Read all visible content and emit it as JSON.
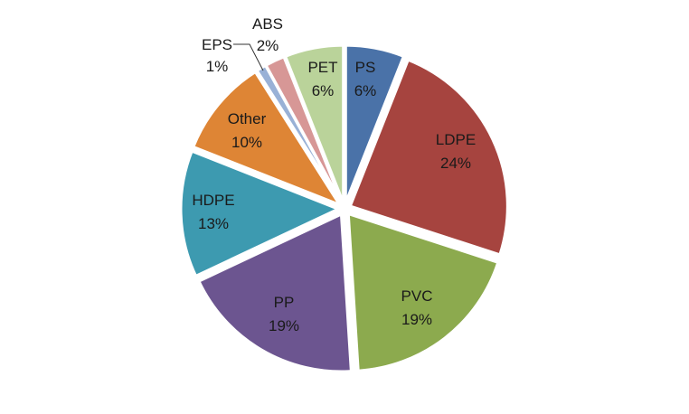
{
  "chart_data": {
    "type": "pie",
    "slices": [
      {
        "label": "PS",
        "value": 6,
        "value_label": "6%",
        "color": "#4a72a8"
      },
      {
        "label": "LDPE",
        "value": 24,
        "value_label": "24%",
        "color": "#a6443f"
      },
      {
        "label": "PVC",
        "value": 19,
        "value_label": "19%",
        "color": "#8caa4e"
      },
      {
        "label": "PP",
        "value": 19,
        "value_label": "19%",
        "color": "#6c5590"
      },
      {
        "label": "HDPE",
        "value": 13,
        "value_label": "13%",
        "color": "#3d9ab0"
      },
      {
        "label": "Other",
        "value": 10,
        "value_label": "10%",
        "color": "#de8535"
      },
      {
        "label": "EPS",
        "value": 1,
        "value_label": "1%",
        "color": "#99b1d6"
      },
      {
        "label": "ABS",
        "value": 2,
        "value_label": "2%",
        "color": "#d79796"
      },
      {
        "label": "PET",
        "value": 6,
        "value_label": "6%",
        "color": "#bad39a"
      }
    ],
    "start": "top",
    "direction": "clockwise",
    "exploded": true
  }
}
